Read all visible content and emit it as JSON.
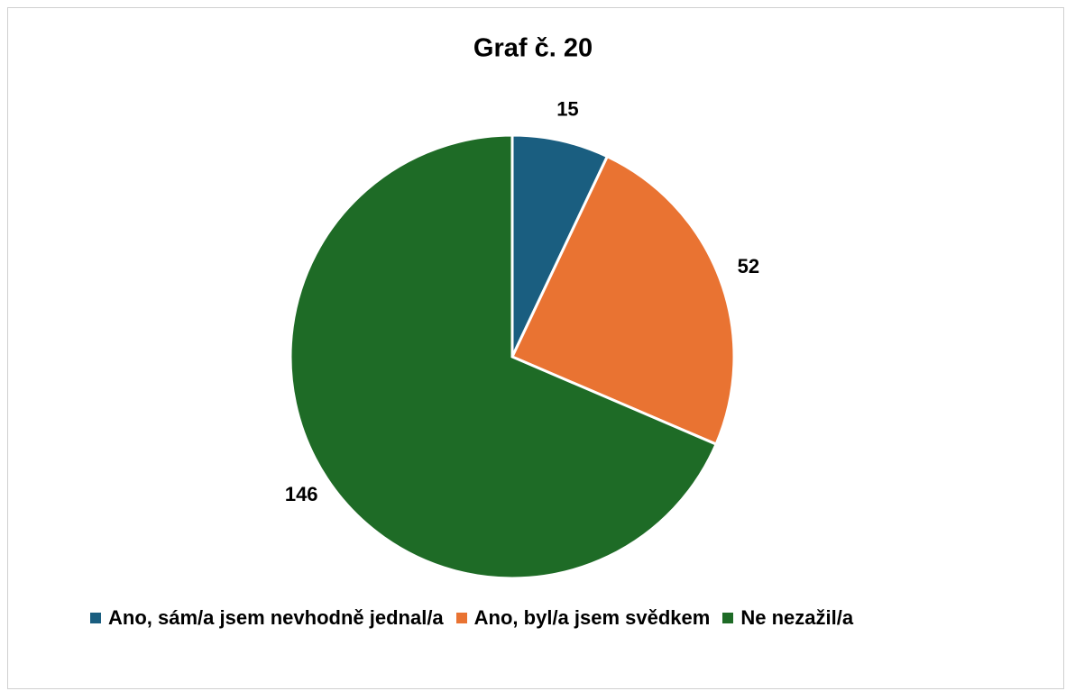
{
  "chart_data": {
    "type": "pie",
    "title": "Graf č. 20",
    "categories": [
      "Ano, sám/a jsem nevhodně jednal/a",
      "Ano, byl/a jsem svědkem",
      "Ne nezažil/a"
    ],
    "values": [
      15,
      52,
      146
    ],
    "colors": [
      "#1a5e80",
      "#e97332",
      "#1e6b26"
    ],
    "legend": "bottom"
  }
}
